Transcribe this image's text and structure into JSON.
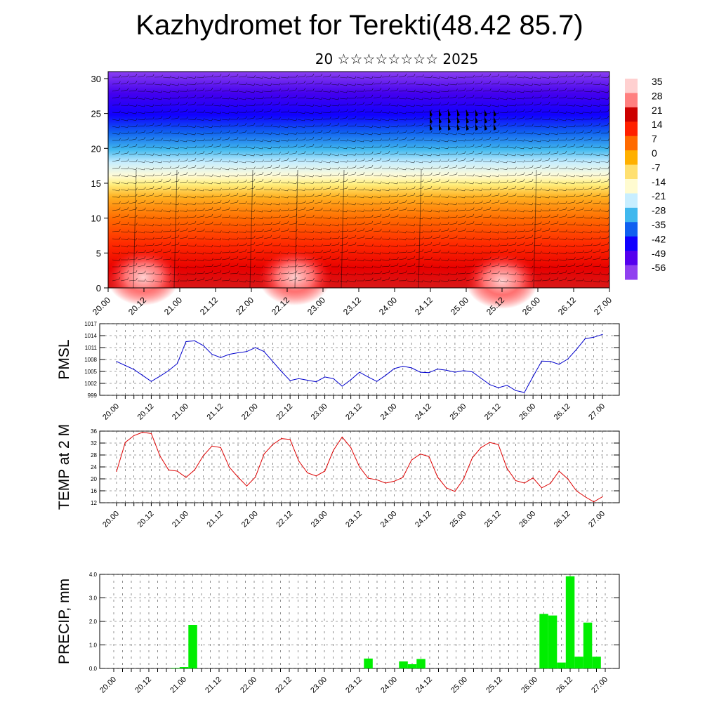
{
  "header": {
    "title": "Kazhydromet for Terekti(48.42 85.7)",
    "subtitle": "20 ☆☆☆☆☆☆☆☆ 2025"
  },
  "time_labels": [
    "20.00",
    "20.12",
    "21.00",
    "21.12",
    "22.00",
    "22.12",
    "23.00",
    "23.12",
    "24.00",
    "24.12",
    "25.00",
    "25.12",
    "26.00",
    "26.12",
    "27.00"
  ],
  "colors": {
    "pmsl_line": "#0000cc",
    "temp_line": "#dd0000",
    "precip_bar": "#00ee00",
    "colorbar": [
      "#ffd0d0",
      "#ff8080",
      "#cc0000",
      "#ff2000",
      "#ff6a00",
      "#ffb000",
      "#ffe070",
      "#fffbd0",
      "#c8eeff",
      "#40b8ee",
      "#1060f0",
      "#1000ff",
      "#5500ee",
      "#9040f0"
    ]
  },
  "chart_data": [
    {
      "type": "heatmap",
      "name": "cross-section",
      "yticks": [
        0,
        5,
        10,
        15,
        20,
        25,
        30
      ],
      "ylim": [
        0,
        31
      ],
      "colorbar_labels": [
        "35",
        "28",
        "21",
        "14",
        "7",
        "0",
        "-7",
        "-14",
        "-21",
        "-28",
        "-35",
        "-42",
        "-49",
        "-56"
      ]
    },
    {
      "type": "line",
      "ylabel": "PMSL",
      "ylim": [
        999,
        1017
      ],
      "yticks": [
        999,
        1002,
        1005,
        1008,
        1011,
        1014,
        1017
      ],
      "x_index": [
        0,
        1,
        2,
        3,
        4,
        5,
        6,
        7,
        8,
        9,
        10,
        11,
        12,
        13,
        14,
        15,
        16,
        17,
        18,
        19,
        20,
        21,
        22,
        23,
        24,
        25,
        26,
        27,
        28,
        29,
        30,
        31,
        32,
        33,
        34,
        35,
        36,
        37,
        38,
        39,
        40,
        41,
        42,
        43,
        44,
        45,
        46,
        47,
        48,
        49,
        50,
        51,
        52,
        53,
        54,
        55,
        56
      ],
      "values": [
        1007.5,
        1006.5,
        1005.5,
        1004,
        1002.5,
        1003.8,
        1005.2,
        1007,
        1012.5,
        1012.7,
        1011.5,
        1009.3,
        1008.5,
        1009.3,
        1009.7,
        1010,
        1011,
        1010,
        1007.5,
        1005,
        1002.7,
        1003.2,
        1002.8,
        1002.4,
        1003.6,
        1003.2,
        1001.3,
        1002.9,
        1004.8,
        1003.6,
        1002.5,
        1004,
        1005.7,
        1006.3,
        1005.9,
        1004.8,
        1004.7,
        1005.6,
        1005.3,
        1004.8,
        1005.2,
        1004.9,
        1003.3,
        1001.7,
        1000.9,
        1001.5,
        1000.2,
        999.7,
        1003.7,
        1007.6,
        1007.5,
        1006.8,
        1008.1,
        1010.5,
        1013.2,
        1013.6,
        1014.3
      ]
    },
    {
      "type": "line",
      "ylabel": "TEMP at 2 M",
      "ylim": [
        12,
        36
      ],
      "yticks": [
        12,
        16,
        20,
        24,
        28,
        32,
        36
      ],
      "x_index": [
        0,
        1,
        2,
        3,
        4,
        5,
        6,
        7,
        8,
        9,
        10,
        11,
        12,
        13,
        14,
        15,
        16,
        17,
        18,
        19,
        20,
        21,
        22,
        23,
        24,
        25,
        26,
        27,
        28,
        29,
        30,
        31,
        32,
        33,
        34,
        35,
        36,
        37,
        38,
        39,
        40,
        41,
        42,
        43,
        44,
        45,
        46,
        47,
        48,
        49,
        50,
        51,
        52,
        53,
        54,
        55,
        56
      ],
      "values": [
        22.5,
        32.2,
        34.5,
        35.6,
        35.2,
        27.7,
        23,
        22.6,
        20.5,
        23,
        27.8,
        31,
        30.5,
        23.9,
        20.6,
        17.6,
        20.6,
        28.3,
        31.5,
        33.5,
        33.2,
        26,
        22,
        21,
        22.6,
        29.6,
        34,
        30.5,
        24,
        20.2,
        19.7,
        18.6,
        19.2,
        20.5,
        26.3,
        28.3,
        27.5,
        20.6,
        17,
        15.8,
        20,
        27,
        30.5,
        32.2,
        31.5,
        23.5,
        19.4,
        18.6,
        20.3,
        17,
        18.5,
        22.6,
        20,
        16,
        14,
        12.3,
        14
      ]
    },
    {
      "type": "bar",
      "ylabel": "PRECIP, mm",
      "ylim": [
        0,
        4
      ],
      "yticks": [
        0,
        1,
        2,
        3,
        4
      ],
      "ytick_labels": [
        "0.0",
        "1.0",
        "2.0",
        "3.0",
        "4.0"
      ],
      "x_index": [
        0,
        1,
        2,
        3,
        4,
        5,
        6,
        7,
        8,
        9,
        10,
        11,
        12,
        13,
        14,
        15,
        16,
        17,
        18,
        19,
        20,
        21,
        22,
        23,
        24,
        25,
        26,
        27,
        28,
        29,
        30,
        31,
        32,
        33,
        34,
        35,
        36,
        37,
        38,
        39,
        40,
        41,
        42,
        43,
        44,
        45,
        46,
        47,
        48,
        49,
        50,
        51,
        52,
        53,
        54,
        55,
        56
      ],
      "values": [
        0,
        0,
        0,
        0,
        0,
        0,
        0,
        0.02,
        0.06,
        1.85,
        0,
        0,
        0,
        0,
        0,
        0,
        0,
        0,
        0,
        0,
        0,
        0,
        0,
        0,
        0,
        0,
        0,
        0,
        0,
        0.42,
        0,
        0,
        0,
        0.3,
        0.18,
        0.4,
        0,
        0,
        0,
        0,
        0,
        0,
        0,
        0,
        0,
        0,
        0,
        0,
        0,
        2.32,
        2.25,
        0.25,
        3.92,
        0.5,
        1.95,
        0.5,
        0
      ]
    }
  ]
}
